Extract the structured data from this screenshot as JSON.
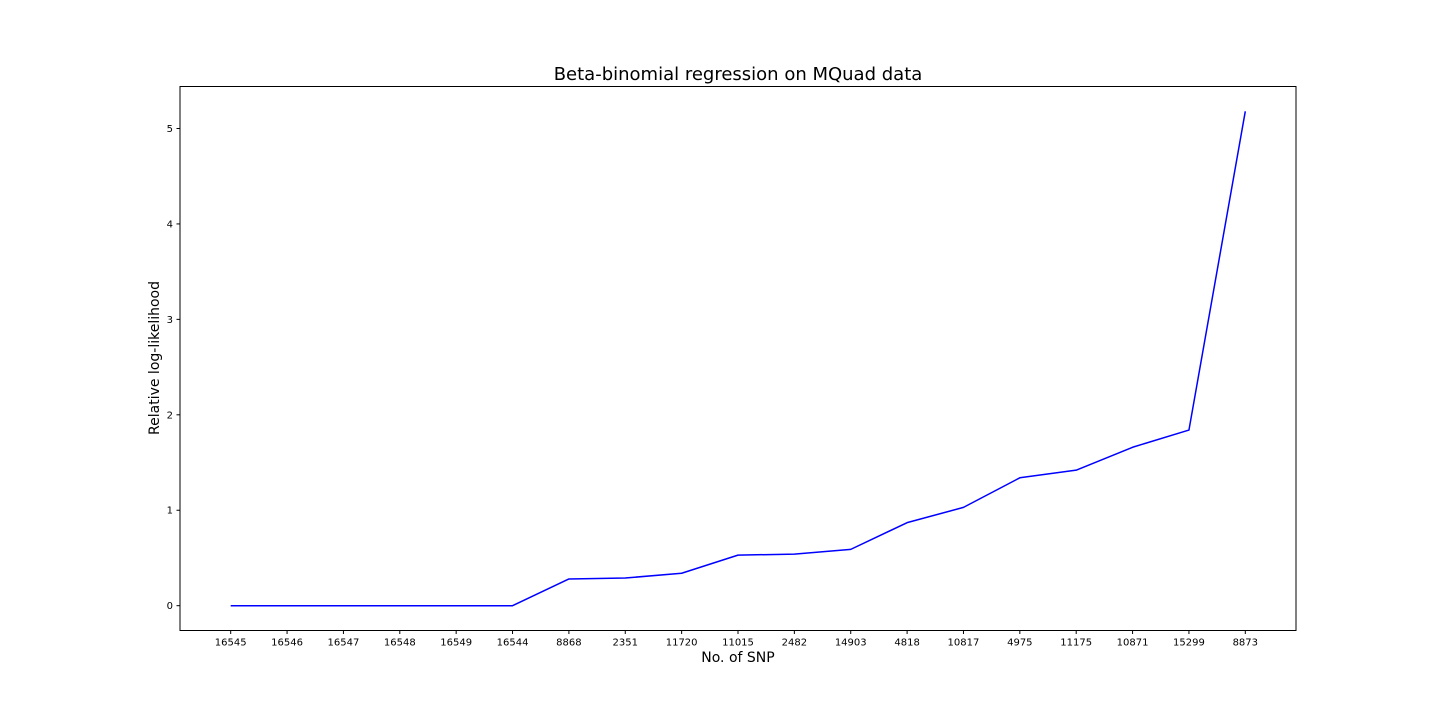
{
  "chart_data": {
    "type": "line",
    "title": "Beta-binomial regression on MQuad data",
    "xlabel": "No. of SNP",
    "ylabel": "Relative log-likelihood",
    "categories": [
      "16545",
      "16546",
      "16547",
      "16548",
      "16549",
      "16544",
      "8868",
      "2351",
      "11720",
      "11015",
      "2482",
      "14903",
      "4818",
      "10817",
      "4975",
      "11175",
      "10871",
      "15299",
      "8873"
    ],
    "series": [
      {
        "values": [
          0,
          0,
          0,
          0,
          0,
          0,
          0.28,
          0.29,
          0.34,
          0.53,
          0.54,
          0.59,
          0.87,
          1.03,
          1.34,
          1.42,
          1.66,
          1.84,
          5.18
        ],
        "color": "#0000ff"
      }
    ],
    "ylim": [
      -0.26,
      5.44
    ],
    "yticks": [
      0,
      1,
      2,
      3,
      4,
      5
    ],
    "grid": false,
    "legend": "none"
  }
}
